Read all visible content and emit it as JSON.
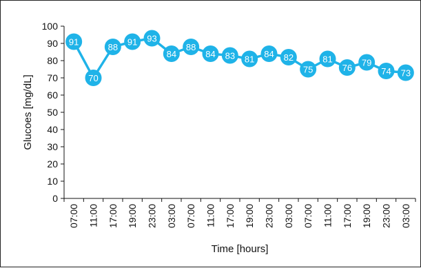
{
  "chart_data": {
    "type": "line",
    "xlabel": "Time [hours]",
    "ylabel": "Glucoes [mg/dL]",
    "ylim": [
      0,
      100
    ],
    "yticks": [
      0,
      10,
      20,
      30,
      40,
      50,
      60,
      70,
      80,
      90,
      100
    ],
    "grid": false,
    "categories": [
      "07:00",
      "11:00",
      "17:00",
      "19:00",
      "23:00",
      "03:00",
      "07:00",
      "11:00",
      "17:00",
      "19:00",
      "23:00",
      "03:00",
      "07:00",
      "11:00",
      "17:00",
      "19:00",
      "23:00",
      "03:00"
    ],
    "values": [
      91,
      70,
      88,
      91,
      93,
      84,
      88,
      84,
      83,
      81,
      84,
      82,
      75,
      81,
      76,
      79,
      74,
      73
    ],
    "color": "#1fb3e8",
    "point_label_color": "#ffffff"
  }
}
